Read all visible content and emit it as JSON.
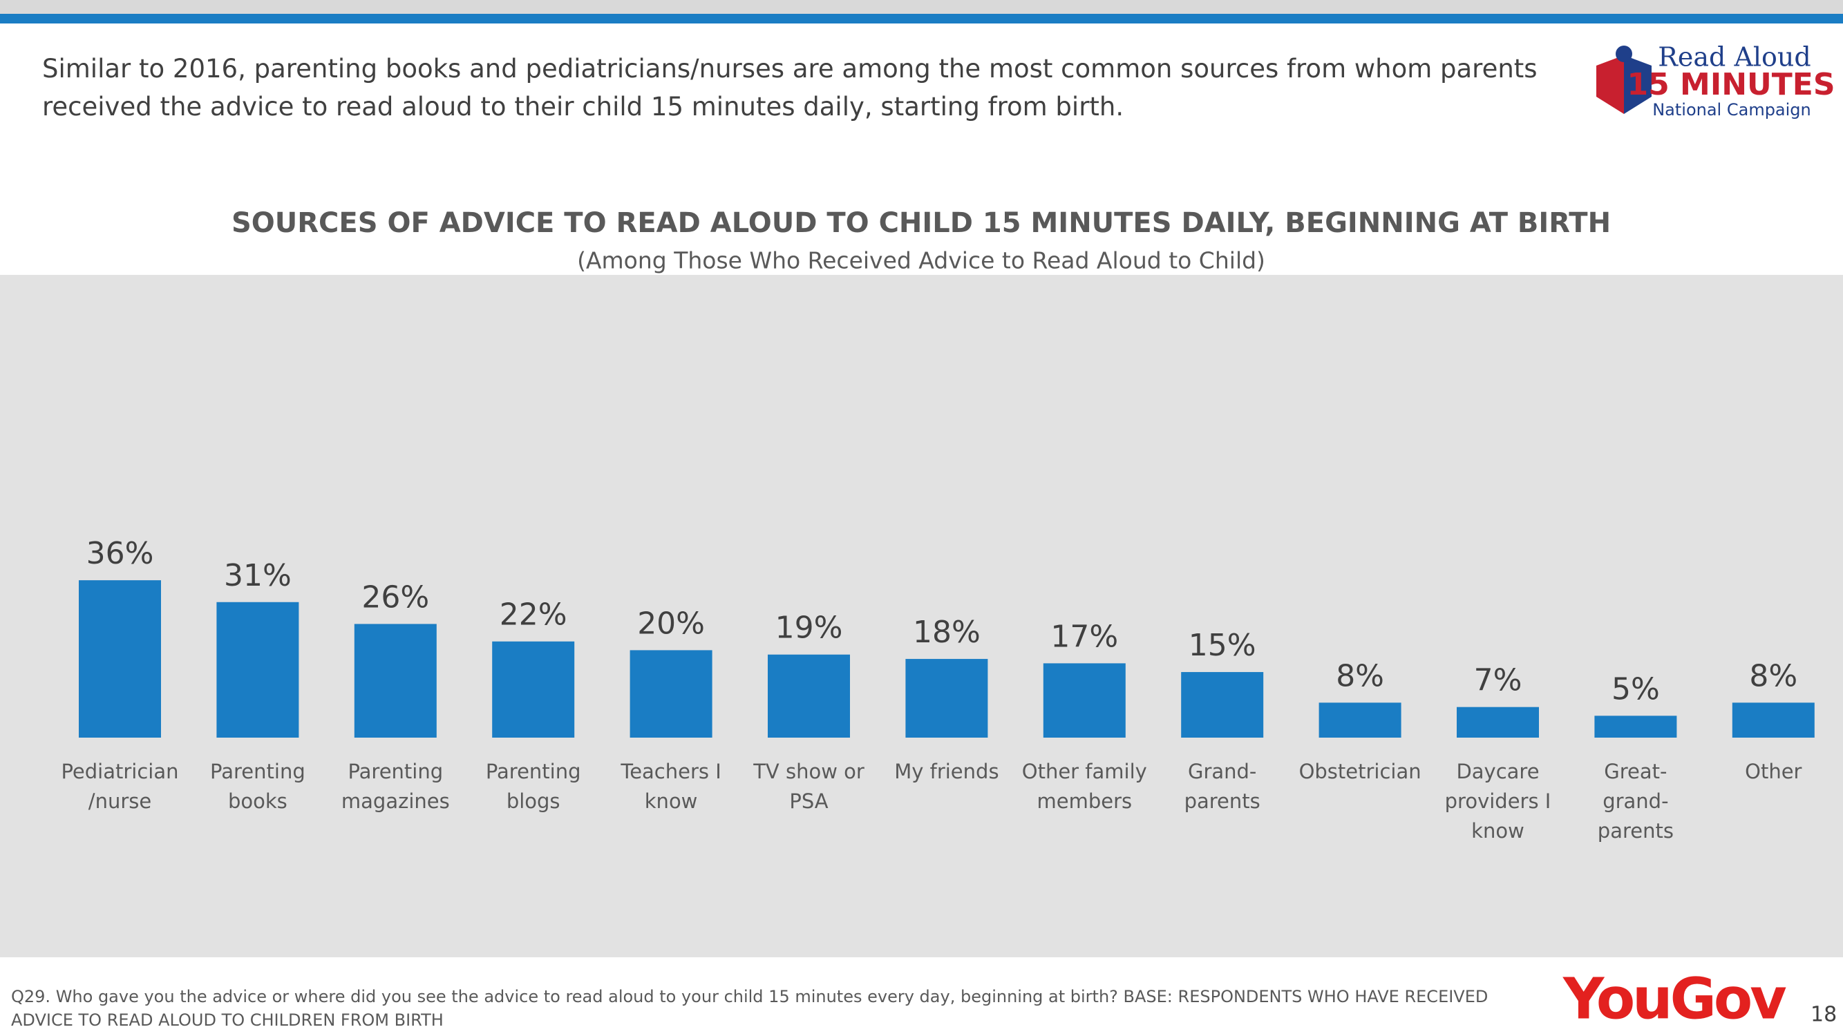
{
  "header": {
    "headline": "Similar to 2016, parenting books and pediatricians/nurses are among the most common sources from whom parents received the advice to read aloud to their child 15 minutes daily, starting from birth.",
    "logo": {
      "line1": "Read Aloud",
      "line2": "15 MINUTES",
      "line3": "National Campaign"
    }
  },
  "chart_data": {
    "type": "bar",
    "title": "SOURCES OF ADVICE TO READ ALOUD TO CHILD 15 MINUTES DAILY, BEGINNING AT BIRTH",
    "subtitle": "(Among Those Who Received Advice to Read Aloud to Child)",
    "categories": [
      "Pediatrician\n/nurse",
      "Parenting\nbooks",
      "Parenting\nmagazines",
      "Parenting\nblogs",
      "Teachers I\nknow",
      "TV show or\nPSA",
      "My friends",
      "Other family\nmembers",
      "Grand-\nparents",
      "Obstetrician",
      "Daycare\nproviders I\nknow",
      "Great-\ngrand-\nparents",
      "Other"
    ],
    "values": [
      36,
      31,
      26,
      22,
      20,
      19,
      18,
      17,
      15,
      8,
      7,
      5,
      8
    ],
    "value_labels": [
      "36%",
      "31%",
      "26%",
      "22%",
      "20%",
      "19%",
      "18%",
      "17%",
      "15%",
      "8%",
      "7%",
      "5%",
      "8%"
    ],
    "color": "#1a7dc4"
  },
  "footer": {
    "note": "Q29. Who gave you the advice or where did you see the advice to read aloud to your child 15 minutes every day, beginning at birth? BASE: RESPONDENTS WHO HAVE RECEIVED ADVICE TO READ ALOUD TO CHILDREN FROM BIRTH",
    "brand": "YouGov",
    "page": "18"
  }
}
